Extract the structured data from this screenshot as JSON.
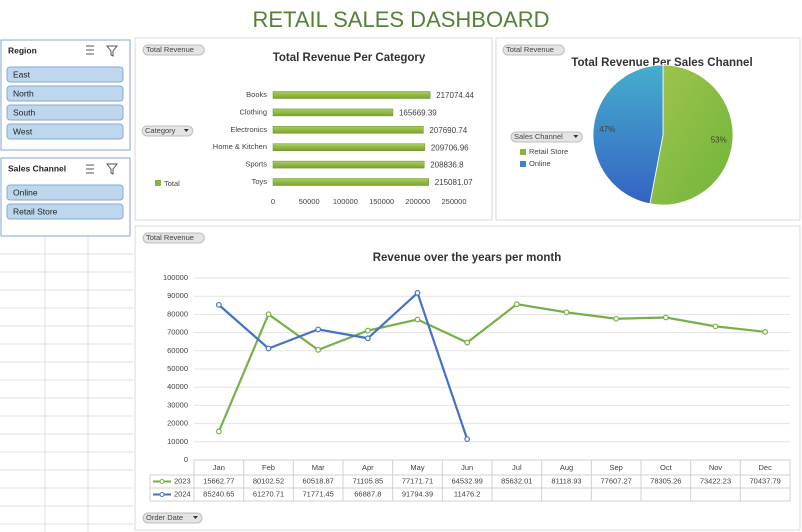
{
  "title": "RETAIL SALES DASHBOARD",
  "slicers": [
    {
      "title": "Region",
      "items": [
        "East",
        "North",
        "South",
        "West"
      ]
    },
    {
      "title": "Sales Channel",
      "items": [
        "Online",
        "Retail Store"
      ]
    }
  ],
  "chart_data": [
    {
      "type": "bar",
      "title": "Total Revenue Per Category",
      "field_buttons": [
        "Total Revenue",
        "Category"
      ],
      "legend": "Total",
      "categories": [
        "Books",
        "Clothing",
        "Electronics",
        "Home & Kitchen",
        "Sports",
        "Toys"
      ],
      "values": [
        217074.44,
        165669.39,
        207690.74,
        209706.96,
        208836.8,
        215081.07
      ],
      "color": "#8ab33f",
      "xlim": [
        0,
        250000
      ],
      "xticks": [
        0,
        50000,
        100000,
        150000,
        200000,
        250000
      ]
    },
    {
      "type": "pie",
      "title": "Total Revenue Per Sales Channel",
      "field_buttons": [
        "Total Revenue",
        "Sales Channel"
      ],
      "categories": [
        "Retail Store",
        "Online"
      ],
      "values": [
        53,
        47
      ],
      "value_labels": [
        "53%",
        "47%"
      ],
      "colors": [
        "#8ab33f",
        "#3d80cc"
      ]
    },
    {
      "type": "line",
      "title": "Revenue over the years per month",
      "field_buttons": [
        "Total Revenue",
        "Order Date"
      ],
      "categories": [
        "Jan",
        "Feb",
        "Mar",
        "Apr",
        "May",
        "Jun",
        "Jul",
        "Aug",
        "Sep",
        "Oct",
        "Nov",
        "Dec"
      ],
      "series": [
        {
          "name": "2023",
          "color": "#77b04a",
          "values": [
            15662.77,
            80102.52,
            60518.87,
            71105.85,
            77171.71,
            64532.99,
            85632.01,
            81118.93,
            77607.27,
            78305.26,
            73422.23,
            70437.79
          ]
        },
        {
          "name": "2024",
          "color": "#4472c4",
          "values": [
            85240.65,
            61270.71,
            71771.45,
            66887.8,
            91794.39,
            11476.2,
            null,
            null,
            null,
            null,
            null,
            null
          ]
        }
      ],
      "ylim": [
        0,
        100000
      ],
      "yticks": [
        0,
        10000,
        20000,
        30000,
        40000,
        50000,
        60000,
        70000,
        80000,
        90000,
        100000
      ],
      "grid": true
    }
  ]
}
